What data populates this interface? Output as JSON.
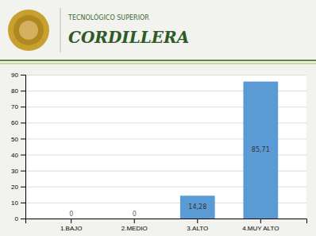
{
  "chart_data": {
    "type": "bar",
    "title": "CORDILLERA",
    "subtitle": "TECNOLÓGICO SUPERIOR",
    "categories": [
      "1.BAJO",
      "2.MEDIO",
      "3.ALTO",
      "4.MUY ALTO"
    ],
    "values": [
      0,
      0,
      14.28,
      85.71
    ],
    "value_labels": [
      "0",
      "0",
      "14,28",
      "85,71"
    ],
    "data_labels": true,
    "color": "#5B9BD5",
    "ylim": [
      0,
      90
    ],
    "yticks": [
      0,
      10,
      20,
      30,
      40,
      50,
      60,
      70,
      80,
      90
    ],
    "grid": true
  }
}
